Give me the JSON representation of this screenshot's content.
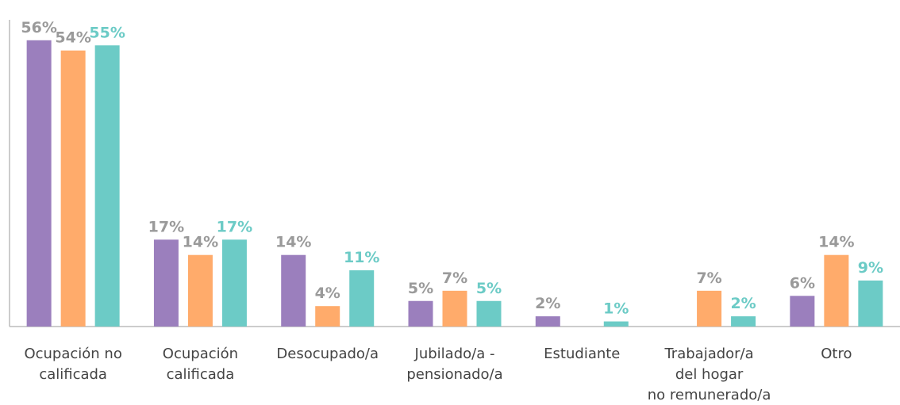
{
  "chart_data": {
    "type": "bar",
    "categories": [
      "Ocupación no\ncalificada",
      "Ocupación\ncalificada",
      "Desocupado/a",
      "Jubilado/a -\npensionado/a",
      "Estudiante",
      "Trabajador/a\ndel hogar\nno remunerado/a",
      "Otro"
    ],
    "series": [
      {
        "color": "#9b7fbd",
        "label_color": "#9a9a9a",
        "values": [
          56,
          17,
          14,
          5,
          2,
          null,
          6
        ],
        "value_labels": [
          "56%",
          "17%",
          "14%",
          "5%",
          "2%",
          null,
          "6%"
        ]
      },
      {
        "color": "#ffab6b",
        "label_color": "#9a9a9a",
        "values": [
          54,
          14,
          4,
          7,
          null,
          7,
          14
        ],
        "value_labels": [
          "54%",
          "14%",
          "4%",
          "7%",
          null,
          "7%",
          "14%"
        ]
      },
      {
        "color": "#6ccbc6",
        "label_color": "#6ccbc6",
        "values": [
          55,
          17,
          11,
          5,
          1,
          2,
          9
        ],
        "value_labels": [
          "55%",
          "17%",
          "11%",
          "5%",
          "1%",
          "2%",
          "9%"
        ]
      }
    ],
    "ylim": [
      0,
      60
    ]
  }
}
